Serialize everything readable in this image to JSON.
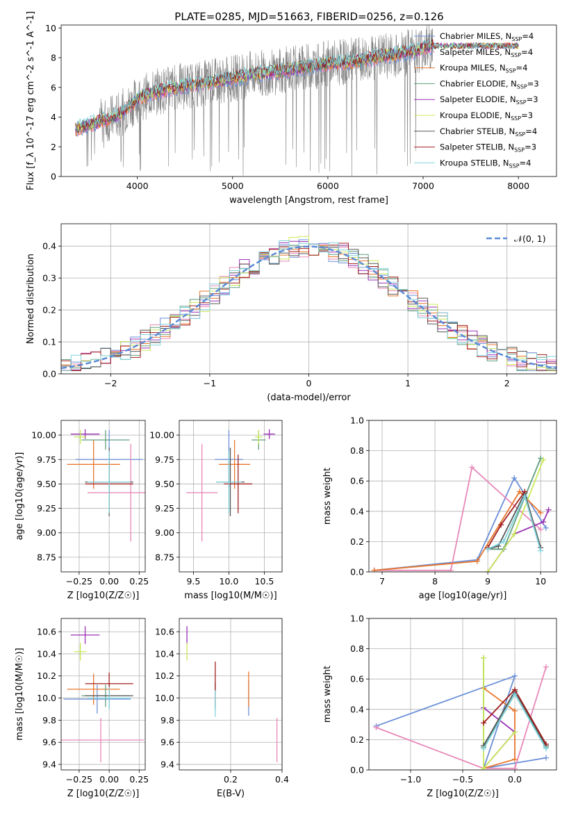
{
  "figure_title": "PLATE=0285, MJD=51663, FIBERID=0256, z=0.126",
  "colors": {
    "series": [
      "#6a8fd8",
      "#e887b8",
      "#e8762b",
      "#5f9e7e",
      "#9b2fb5",
      "#c8e856",
      "#555555",
      "#a01c1c",
      "#7fd3dc"
    ],
    "observed": "#808080",
    "normal": "#5b8ad6",
    "grid": "#b0b0b0"
  },
  "series_names": [
    {
      "name": "Chabrier MILES",
      "nssp": "4"
    },
    {
      "name": "Salpeter MILES",
      "nssp": "4"
    },
    {
      "name": "Kroupa MILES",
      "nssp": "4"
    },
    {
      "name": "Chabrier ELODIE",
      "nssp": "3"
    },
    {
      "name": "Salpeter ELODIE",
      "nssp": "3"
    },
    {
      "name": "Kroupa ELODIE",
      "nssp": "3"
    },
    {
      "name": "Chabrier STELIB",
      "nssp": "4"
    },
    {
      "name": "Salpeter STELIB",
      "nssp": "3"
    },
    {
      "name": "Kroupa STELIB",
      "nssp": "4"
    }
  ],
  "chart_data": [
    {
      "id": "spectrum",
      "type": "line",
      "xlabel": "wavelength [Angstrom, rest frame]",
      "ylabel": "Flux [f_λ 10^-17 erg cm^-2 s^-1 A^-1]",
      "xlim": [
        3200,
        8400
      ],
      "ylim": [
        0,
        10.2
      ],
      "xticks": [
        "4000",
        "5000",
        "6000",
        "7000",
        "8000"
      ],
      "yticks": [
        "0",
        "2",
        "4",
        "6",
        "8",
        "10"
      ],
      "grid": false,
      "legend": "right",
      "continuum": {
        "x": [
          3350,
          3600,
          3800,
          4000,
          4200,
          4400,
          4600,
          4800,
          5000,
          5200,
          5400,
          5600,
          5800,
          6000,
          6200,
          6400,
          6600,
          6800,
          7000,
          7100
        ],
        "y": [
          3.2,
          3.7,
          4.1,
          5.2,
          5.7,
          6.0,
          6.2,
          6.4,
          6.6,
          6.9,
          7.0,
          7.2,
          7.4,
          7.6,
          7.7,
          7.9,
          8.1,
          8.3,
          8.6,
          8.8
        ]
      },
      "model_xrange": [
        3350,
        8000
      ]
    },
    {
      "id": "residuals",
      "type": "bar",
      "xlabel": "(data-model)/error",
      "ylabel": "Normed distribution",
      "xlim": [
        -2.5,
        2.5
      ],
      "ylim": [
        0,
        0.47
      ],
      "xticks": [
        "−2",
        "−1",
        "0",
        "1",
        "2"
      ],
      "yticks": [
        "0.0",
        "0.1",
        "0.2",
        "0.3",
        "0.4"
      ],
      "grid": true,
      "legend": "top-right",
      "legend_label": "𝒩(0, 1)",
      "bin_width": 0.1,
      "bins_start": -2.5,
      "nbins": 50
    },
    {
      "id": "age_vs_Z",
      "type": "scatter",
      "xlabel": "Z [log10(Z/Z☉)]",
      "ylabel": "age [log10(age/yr)]",
      "xlim": [
        -0.4,
        0.3
      ],
      "ylim": [
        8.6,
        10.15
      ],
      "xticks": [
        "−0.25",
        "0.00",
        "0.25"
      ],
      "yticks": [
        "8.75",
        "9.00",
        "9.25",
        "9.50",
        "9.75",
        "10.00"
      ],
      "grid": true,
      "points": [
        {
          "x": 0.0,
          "y": 9.75,
          "xerr": 0.28,
          "yerr": 0.3
        },
        {
          "x": 0.18,
          "y": 9.41,
          "xerr": 0.36,
          "yerr": 0.5
        },
        {
          "x": -0.13,
          "y": 9.7,
          "xerr": 0.22,
          "yerr": 0.25
        },
        {
          "x": -0.03,
          "y": 9.95,
          "xerr": 0.2,
          "yerr": 0.1
        },
        {
          "x": -0.2,
          "y": 10.01,
          "xerr": 0.12,
          "yerr": 0.05
        },
        {
          "x": -0.24,
          "y": 9.98,
          "xerr": 0.05,
          "yerr": 0.07
        },
        {
          "x": 0.0,
          "y": 9.52,
          "xerr": 0.2,
          "yerr": 0.35
        },
        {
          "x": 0.0,
          "y": 9.5,
          "xerr": 0.2,
          "yerr": 0.3
        },
        {
          "x": 0.0,
          "y": 9.52,
          "xerr": 0.18,
          "yerr": 0.32
        }
      ]
    },
    {
      "id": "age_vs_mass",
      "type": "scatter",
      "xlabel": "mass [log10(M/M☉)]",
      "ylabel": "",
      "xlim": [
        9.3,
        10.75
      ],
      "ylim": [
        8.6,
        10.15
      ],
      "xticks": [
        "9.5",
        "10.0",
        "10.5"
      ],
      "yticks": [
        "8.75",
        "9.00",
        "9.25",
        "9.50",
        "9.75",
        "10.00"
      ],
      "grid": true,
      "points": [
        {
          "x": 10.0,
          "y": 9.75,
          "xerr": 0.2,
          "yerr": 0.3
        },
        {
          "x": 9.62,
          "y": 9.41,
          "xerr": 0.22,
          "yerr": 0.5
        },
        {
          "x": 10.08,
          "y": 9.7,
          "xerr": 0.22,
          "yerr": 0.25
        },
        {
          "x": 10.42,
          "y": 9.95,
          "xerr": 0.1,
          "yerr": 0.1
        },
        {
          "x": 10.57,
          "y": 10.01,
          "xerr": 0.08,
          "yerr": 0.05
        },
        {
          "x": 10.42,
          "y": 9.98,
          "xerr": 0.05,
          "yerr": 0.07
        },
        {
          "x": 10.02,
          "y": 9.52,
          "xerr": 0.2,
          "yerr": 0.35
        },
        {
          "x": 10.13,
          "y": 9.5,
          "xerr": 0.2,
          "yerr": 0.3
        },
        {
          "x": 10.0,
          "y": 9.52,
          "xerr": 0.18,
          "yerr": 0.32
        }
      ]
    },
    {
      "id": "weight_vs_age",
      "type": "line",
      "xlabel": "age [log10(age/yr)]",
      "ylabel": "mass weight",
      "xlim": [
        6.75,
        10.3
      ],
      "ylim": [
        0,
        1
      ],
      "xticks": [
        "7",
        "8",
        "9",
        "10"
      ],
      "yticks": [
        "0.0",
        "0.2",
        "0.4",
        "0.6",
        "0.8",
        "1.0"
      ],
      "grid": true,
      "series": [
        {
          "x": [
            6.85,
            8.8,
            9.5,
            10.1
          ],
          "y": [
            0.01,
            0.08,
            0.62,
            0.29
          ]
        },
        {
          "x": [
            6.85,
            8.3,
            8.7,
            10.0
          ],
          "y": [
            0.01,
            0.01,
            0.69,
            0.28
          ]
        },
        {
          "x": [
            6.85,
            8.8,
            9.6,
            10.0
          ],
          "y": [
            0.01,
            0.07,
            0.53,
            0.39
          ]
        },
        {
          "x": [
            9.0,
            9.3,
            10.0
          ],
          "y": [
            0.15,
            0.15,
            0.75
          ]
        },
        {
          "x": [
            9.0,
            9.5,
            10.05,
            10.15
          ],
          "y": [
            0.0,
            0.25,
            0.33,
            0.41
          ]
        },
        {
          "x": [
            9.0,
            9.5,
            10.05
          ],
          "y": [
            0.0,
            0.25,
            0.74
          ]
        },
        {
          "x": [
            9.0,
            9.2,
            9.7,
            10.0
          ],
          "y": [
            0.15,
            0.17,
            0.52,
            0.16
          ]
        },
        {
          "x": [
            9.0,
            9.25,
            9.7
          ],
          "y": [
            0.16,
            0.31,
            0.53
          ]
        },
        {
          "x": [
            9.0,
            9.3,
            9.7,
            10.0
          ],
          "y": [
            0.15,
            0.2,
            0.5,
            0.14
          ]
        }
      ]
    },
    {
      "id": "mass_vs_Z",
      "type": "scatter",
      "xlabel": "Z [log10(Z/Z☉)]",
      "ylabel": "mass [log10(M/M☉)]",
      "xlim": [
        -0.4,
        0.3
      ],
      "ylim": [
        9.35,
        10.72
      ],
      "xticks": [
        "−0.25",
        "0.00",
        "0.25"
      ],
      "yticks": [
        "9.4",
        "9.6",
        "9.8",
        "10.0",
        "10.2",
        "10.4",
        "10.6"
      ],
      "grid": true,
      "points": [
        {
          "x": -0.1,
          "y": 9.99,
          "xerr": 0.28,
          "yerr": 0.13
        },
        {
          "x": -0.07,
          "y": 9.62,
          "xerr": 0.36,
          "yerr": 0.2
        },
        {
          "x": -0.13,
          "y": 10.08,
          "xerr": 0.22,
          "yerr": 0.14
        },
        {
          "x": -0.03,
          "y": 10.02,
          "xerr": 0.2,
          "yerr": 0.1
        },
        {
          "x": -0.2,
          "y": 10.57,
          "xerr": 0.12,
          "yerr": 0.08
        },
        {
          "x": -0.24,
          "y": 10.42,
          "xerr": 0.05,
          "yerr": 0.08
        },
        {
          "x": 0.0,
          "y": 10.02,
          "xerr": 0.2,
          "yerr": 0.12
        },
        {
          "x": 0.0,
          "y": 10.13,
          "xerr": 0.2,
          "yerr": 0.1
        },
        {
          "x": 0.0,
          "y": 10.0,
          "xerr": 0.18,
          "yerr": 0.1
        }
      ]
    },
    {
      "id": "mass_vs_ebv",
      "type": "scatter",
      "xlabel": "E(B-V)",
      "ylabel": "",
      "xlim": [
        0.0,
        0.4
      ],
      "ylim": [
        9.35,
        10.72
      ],
      "xticks": [
        "0.2",
        "0.4"
      ],
      "yticks": [
        "9.4",
        "9.6",
        "9.8",
        "10.0",
        "10.2",
        "10.4",
        "10.6"
      ],
      "grid": true,
      "points": [
        {
          "x": 0.27,
          "y": 10.0,
          "xerr": 0.0,
          "yerr": 0.16
        },
        {
          "x": 0.38,
          "y": 9.62,
          "xerr": 0.0,
          "yerr": 0.2
        },
        {
          "x": 0.27,
          "y": 10.08,
          "xerr": 0.0,
          "yerr": 0.16
        },
        {
          "x": 0.14,
          "y": 10.02,
          "xerr": 0.0,
          "yerr": 0.12
        },
        {
          "x": 0.03,
          "y": 10.57,
          "xerr": 0.0,
          "yerr": 0.08
        },
        {
          "x": 0.03,
          "y": 10.42,
          "xerr": 0.0,
          "yerr": 0.08
        },
        {
          "x": 0.14,
          "y": 10.02,
          "xerr": 0.0,
          "yerr": 0.12
        },
        {
          "x": 0.14,
          "y": 10.13,
          "xerr": 0.0,
          "yerr": 0.2
        },
        {
          "x": 0.14,
          "y": 9.95,
          "xerr": 0.0,
          "yerr": 0.12
        }
      ]
    },
    {
      "id": "weight_vs_Z",
      "type": "line",
      "xlabel": "Z [log10(Z/Z☉)]",
      "ylabel": "mass weight",
      "xlim": [
        -1.4,
        0.4
      ],
      "ylim": [
        0,
        1
      ],
      "xticks": [
        "−1.0",
        "−0.5",
        "0.0"
      ],
      "yticks": [
        "0.0",
        "0.2",
        "0.4",
        "0.6",
        "0.8",
        "1.0"
      ],
      "grid": true,
      "series": [
        {
          "x": [
            -1.33,
            0.0,
            -0.3,
            0.3
          ],
          "y": [
            0.29,
            0.62,
            0.01,
            0.08
          ]
        },
        {
          "x": [
            -1.33,
            -0.3,
            0.0,
            0.3
          ],
          "y": [
            0.28,
            0.01,
            0.01,
            0.68
          ]
        },
        {
          "x": [
            -0.3,
            0.0,
            0.0,
            -0.3
          ],
          "y": [
            0.54,
            0.39,
            0.07,
            0.01
          ]
        },
        {
          "x": [
            -0.3,
            -0.3,
            0.0,
            0.3
          ],
          "y": [
            0.74,
            0.15,
            0.52,
            0.15
          ]
        },
        {
          "x": [
            -0.3,
            0.0,
            -0.3
          ],
          "y": [
            0.41,
            0.25,
            0.01
          ]
        },
        {
          "x": [
            -0.3,
            -0.3,
            0.0,
            -0.3
          ],
          "y": [
            0.74,
            0.01,
            0.25,
            0.01
          ]
        },
        {
          "x": [
            -0.3,
            0.0,
            0.3
          ],
          "y": [
            0.16,
            0.52,
            0.16
          ]
        },
        {
          "x": [
            -0.3,
            0.0,
            0.3
          ],
          "y": [
            0.31,
            0.53,
            0.17
          ]
        },
        {
          "x": [
            -0.3,
            0.0,
            0.3
          ],
          "y": [
            0.14,
            0.5,
            0.14
          ]
        }
      ]
    }
  ]
}
